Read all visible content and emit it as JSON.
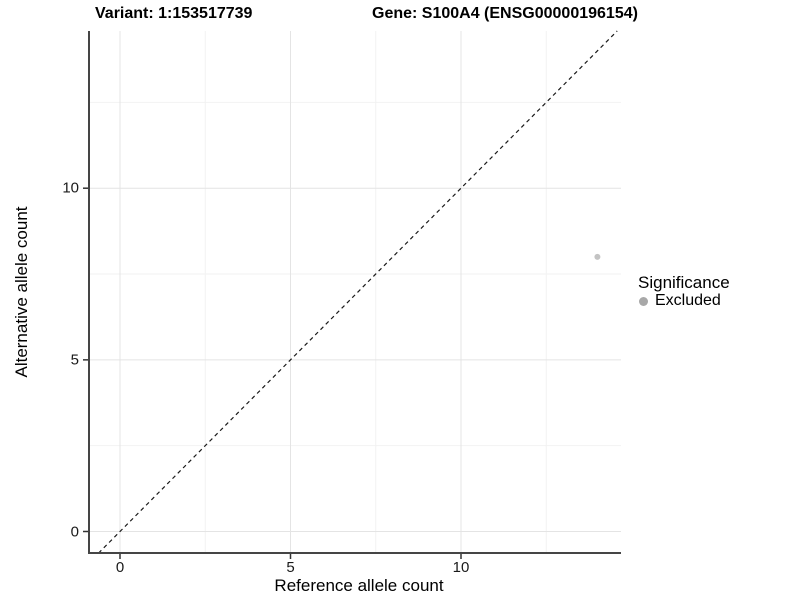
{
  "titles": {
    "variant": "Variant: 1:153517739",
    "gene": "Gene: S100A4 (ENSG00000196154)"
  },
  "chart_data": {
    "type": "scatter",
    "xlabel": "Reference allele count",
    "ylabel": "Alternative allele count",
    "x_ticks": [
      0,
      5,
      10
    ],
    "y_ticks": [
      0,
      5,
      10
    ],
    "x_minor_ticks": [
      2.5,
      7.5,
      12.5
    ],
    "y_minor_ticks": [
      2.5,
      7.5,
      12.5
    ],
    "xlim": [
      -0.91,
      14.69
    ],
    "ylim": [
      -0.63,
      14.58
    ],
    "grid": "major and minor, very light gray, on white background",
    "identity_line": {
      "type": "dashed",
      "slope": 1,
      "intercept": 0
    },
    "series": [
      {
        "name": "Excluded",
        "points": [
          {
            "x": 14,
            "y": 8
          }
        ],
        "point_color": "#c3c3c3",
        "point_radius": 3
      }
    ],
    "legend": {
      "title": "Significance",
      "position": "right",
      "items": [
        {
          "label": "Excluded",
          "color": "#a8a8a8"
        }
      ]
    }
  },
  "colors": {
    "background": "#ffffff",
    "axis_line": "#454545",
    "tick_mark": "#333333",
    "grid_major": "#e4e4e4",
    "grid_minor": "#f2f2f2",
    "identity_line": "#1a1a1a",
    "text": "#000000",
    "point": "#c3c3c3",
    "legend_dot": "#a8a8a8"
  }
}
